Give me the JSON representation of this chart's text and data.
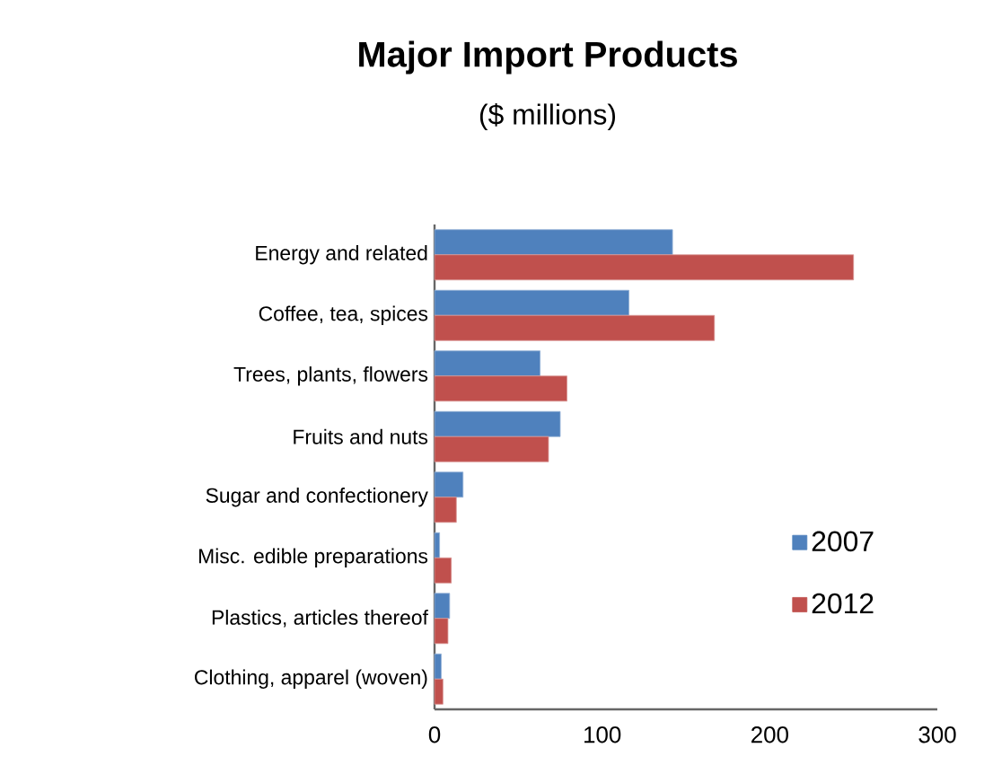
{
  "chart_data": {
    "type": "bar",
    "orientation": "horizontal",
    "title": "Major Import Products",
    "subtitle": "($ millions)",
    "categories": [
      "Energy and related",
      "Coffee, tea, spices",
      "Trees, plants, flowers",
      "Fruits and nuts",
      "Sugar and confectionery",
      "Misc. edible preparations",
      "Plastics, articles thereof",
      "Clothing, apparel (woven)"
    ],
    "series": [
      {
        "name": "2007",
        "color": "#4f81bd",
        "values": [
          142,
          116,
          63,
          75,
          17,
          3,
          9,
          4
        ]
      },
      {
        "name": "2012",
        "color": "#c0504d",
        "values": [
          250,
          167,
          79,
          68,
          13,
          10,
          8,
          5
        ]
      }
    ],
    "xlim": [
      0,
      300
    ],
    "xticks": [
      0,
      100,
      200,
      300
    ],
    "legend": "right",
    "grid": false
  }
}
